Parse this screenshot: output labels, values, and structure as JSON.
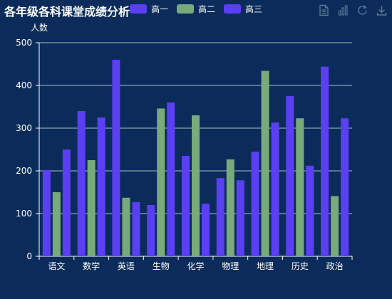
{
  "chart_data": {
    "type": "bar",
    "title": "各年级各科课堂成绩分析",
    "ylabel": "人数",
    "xlabel": "",
    "ylim": [
      0,
      500
    ],
    "yticks": [
      0,
      100,
      200,
      300,
      400,
      500
    ],
    "grid": true,
    "legend_position": "top",
    "categories": [
      "语文",
      "数学",
      "英语",
      "生物",
      "化学",
      "物理",
      "地理",
      "历史",
      "政治"
    ],
    "series": [
      {
        "name": "高一",
        "color": "#5b3ff3",
        "values": [
          202,
          340,
          460,
          120,
          235,
          183,
          245,
          375,
          444
        ]
      },
      {
        "name": "高二",
        "color": "#78aa7b",
        "values": [
          150,
          225,
          137,
          346,
          330,
          227,
          434,
          323,
          141
        ]
      },
      {
        "name": "高三",
        "color": "#5b3ff3",
        "values": [
          250,
          325,
          127,
          360,
          123,
          178,
          313,
          212,
          323
        ]
      }
    ]
  },
  "toolbox": {
    "icons": [
      "data-view-icon",
      "bar-chart-icon",
      "restore-icon",
      "download-icon"
    ]
  },
  "colors": {
    "background": "#0b2c5a",
    "text": "#ffffff",
    "toolbox": "#5d7391"
  }
}
